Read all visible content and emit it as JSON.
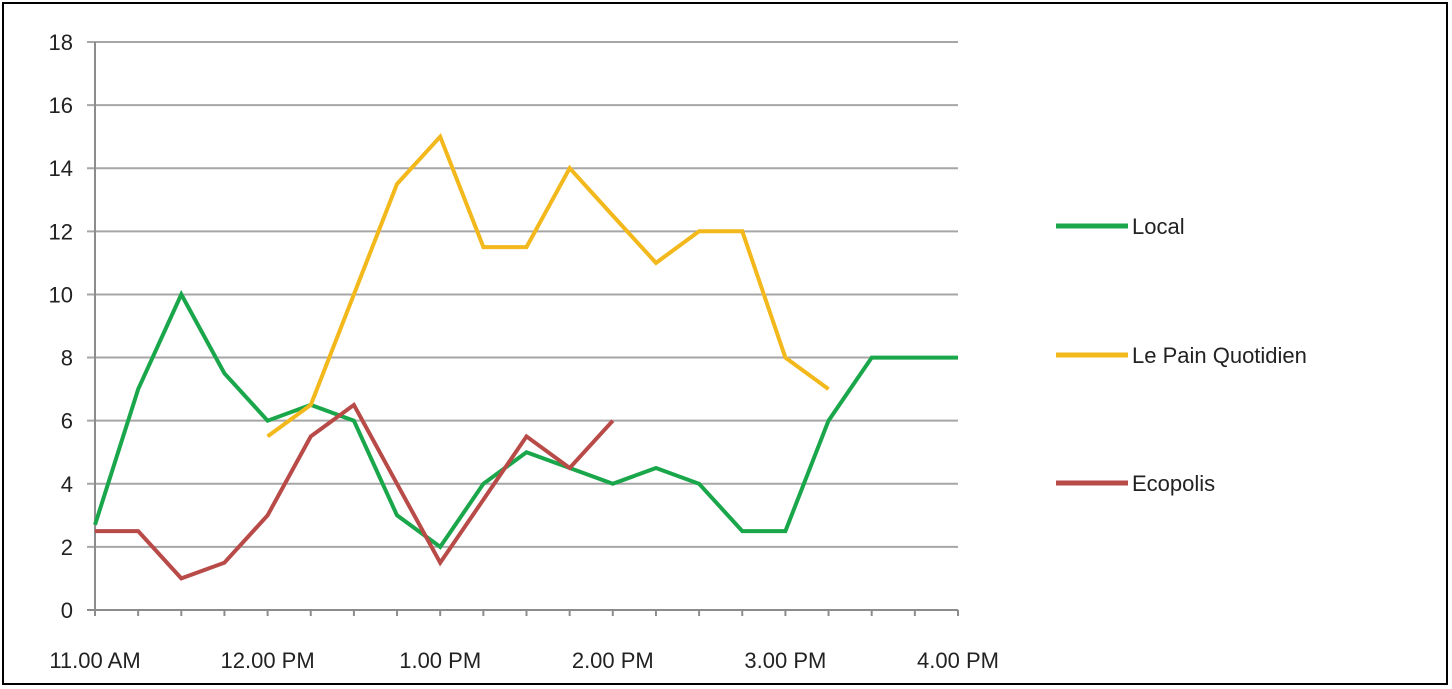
{
  "chart_data": {
    "type": "line",
    "title": "",
    "xlabel": "",
    "ylabel": "",
    "ylim": [
      0,
      18
    ],
    "yticks": [
      0,
      2,
      4,
      6,
      8,
      10,
      12,
      14,
      16,
      18
    ],
    "xlim": [
      "11:00",
      "16:00"
    ],
    "xtick_labels": [
      "11.00 AM",
      "12.00 PM",
      "1.00 PM",
      "2.00 PM",
      "3.00 PM",
      "4.00 PM"
    ],
    "grid": "horizontal",
    "legend_position": "right",
    "series": [
      {
        "name": "Local",
        "color": "#1aa64a",
        "x": [
          "11:00",
          "11:15",
          "11:30",
          "11:45",
          "12:00",
          "12:15",
          "12:30",
          "12:45",
          "13:00",
          "13:15",
          "13:30",
          "13:45",
          "14:00",
          "14:15",
          "14:30",
          "14:45",
          "15:00",
          "15:15",
          "15:30",
          "15:45",
          "16:00"
        ],
        "values": [
          2.7,
          7,
          10,
          7.5,
          6,
          6.5,
          6,
          3,
          2,
          4,
          5,
          4.5,
          4,
          4.5,
          4,
          2.5,
          2.5,
          6,
          8,
          8,
          8
        ]
      },
      {
        "name": "Le Pain Quotidien",
        "color": "#f2b81c",
        "x": [
          "12:00",
          "12:15",
          "12:30",
          "12:45",
          "13:00",
          "13:15",
          "13:30",
          "13:45",
          "14:00",
          "14:15",
          "14:30",
          "14:45",
          "15:00",
          "15:15"
        ],
        "values": [
          5.5,
          6.5,
          10,
          13.5,
          15,
          11.5,
          11.5,
          14,
          12.5,
          11,
          12,
          12,
          8,
          7
        ]
      },
      {
        "name": "Ecopolis",
        "color": "#b84a48",
        "x": [
          "11:00",
          "11:15",
          "11:30",
          "11:45",
          "12:00",
          "12:15",
          "12:30",
          "12:45",
          "13:00",
          "13:15",
          "13:30",
          "13:45",
          "14:00"
        ],
        "values": [
          2.5,
          2.5,
          1,
          1.5,
          3,
          5.5,
          6.5,
          4,
          1.5,
          3.5,
          5.5,
          4.5,
          6
        ]
      }
    ]
  }
}
